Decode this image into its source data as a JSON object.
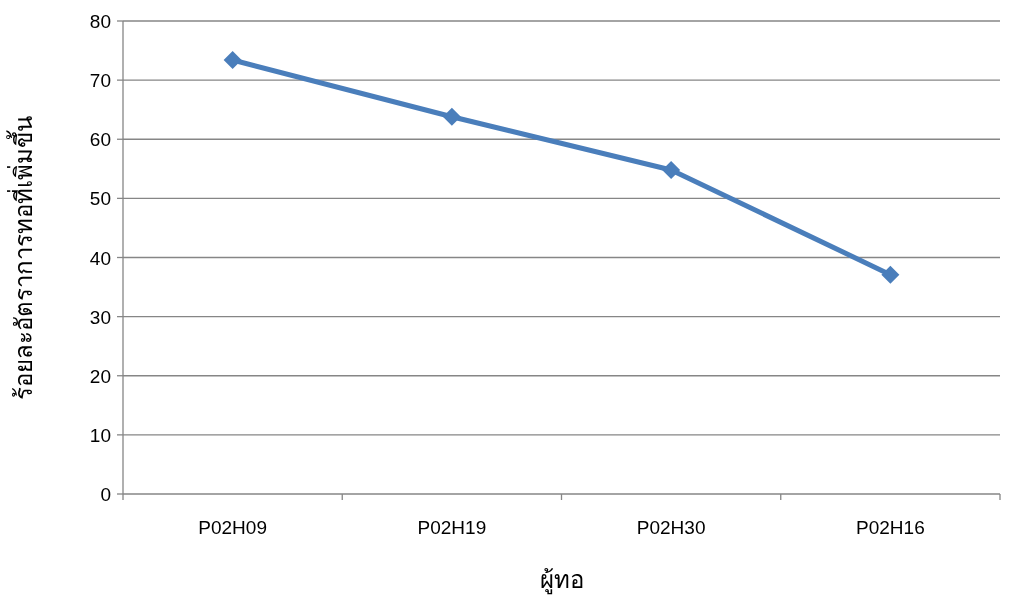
{
  "chart_data": {
    "type": "line",
    "xlabel": "ผู้ทอ",
    "ylabel": "ร้อยละอัตราการทอที่เพิ่มขึ้น",
    "categories": [
      "P02H09",
      "P02H19",
      "P02H30",
      "P02H16"
    ],
    "series": [
      {
        "color": "#4a7ebb",
        "values": [
          73.4,
          63.8,
          54.8,
          37.1
        ]
      }
    ],
    "ylim": [
      0,
      80
    ],
    "yticks": [
      0,
      10,
      20,
      30,
      40,
      50,
      60,
      70,
      80
    ],
    "grid": "y",
    "marker": "diamond"
  }
}
